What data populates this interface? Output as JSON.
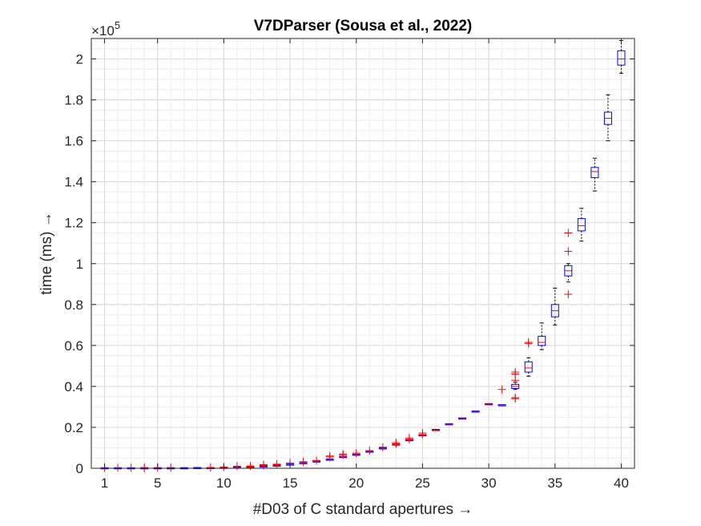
{
  "chart_data": {
    "type": "boxplot",
    "title": "V7DParser (Sousa et al., 2022)",
    "xlabel": "#D03 of C standard apertures →",
    "ylabel": "time (ms) →",
    "y_exponent_base": "×10",
    "y_exponent_power": "5",
    "xlim": [
      0,
      41
    ],
    "ylim": [
      0,
      2.1
    ],
    "y_scale_factor": 100000,
    "xticks": [
      1,
      5,
      10,
      15,
      20,
      25,
      30,
      35,
      40
    ],
    "yticks": [
      0,
      0.2,
      0.4,
      0.6,
      0.8,
      1,
      1.2,
      1.4,
      1.6,
      1.8,
      2
    ],
    "ytick_labels": [
      "0",
      "0.2",
      "0.4",
      "0.6",
      "0.8",
      "1",
      "1.2",
      "1.4",
      "1.6",
      "1.8",
      "2"
    ],
    "grid": true,
    "minor_grid": true,
    "colors": {
      "box": "#0000ff",
      "median": "#ff0000",
      "outlier": "#ff0000",
      "whisker": "#000000"
    },
    "boxes": [
      {
        "x": 1,
        "q1": 0,
        "median": 0,
        "q3": 0,
        "lo": 0,
        "hi": 0
      },
      {
        "x": 2,
        "q1": 0,
        "median": 0,
        "q3": 0,
        "lo": 0,
        "hi": 0
      },
      {
        "x": 3,
        "q1": 0,
        "median": 0,
        "q3": 0,
        "lo": 0,
        "hi": 0
      },
      {
        "x": 4,
        "q1": 0,
        "median": 0,
        "q3": 0,
        "lo": 0,
        "hi": 0
      },
      {
        "x": 5,
        "q1": 0,
        "median": 0,
        "q3": 0,
        "lo": 0,
        "hi": 0
      },
      {
        "x": 6,
        "q1": 0,
        "median": 0,
        "q3": 0,
        "lo": 0,
        "hi": 0
      },
      {
        "x": 7,
        "q1": 0,
        "median": 0,
        "q3": 0,
        "lo": 0,
        "hi": 0
      },
      {
        "x": 8,
        "q1": 0.001,
        "median": 0.001,
        "q3": 0.001,
        "lo": 0.001,
        "hi": 0.001
      },
      {
        "x": 9,
        "q1": 0.001,
        "median": 0.001,
        "q3": 0.001,
        "lo": 0.001,
        "hi": 0.001
      },
      {
        "x": 10,
        "q1": 0.002,
        "median": 0.002,
        "q3": 0.002,
        "lo": 0.002,
        "hi": 0.002
      },
      {
        "x": 11,
        "q1": 0.004,
        "median": 0.004,
        "q3": 0.004,
        "lo": 0.004,
        "hi": 0.004
      },
      {
        "x": 12,
        "q1": 0.006,
        "median": 0.006,
        "q3": 0.006,
        "lo": 0.006,
        "hi": 0.006
      },
      {
        "x": 13,
        "q1": 0.009,
        "median": 0.009,
        "q3": 0.009,
        "lo": 0.009,
        "hi": 0.009
      },
      {
        "x": 14,
        "q1": 0.013,
        "median": 0.013,
        "q3": 0.013,
        "lo": 0.013,
        "hi": 0.013
      },
      {
        "x": 15,
        "q1": 0.018,
        "median": 0.018,
        "q3": 0.018,
        "lo": 0.018,
        "hi": 0.018
      },
      {
        "x": 16,
        "q1": 0.025,
        "median": 0.025,
        "q3": 0.025,
        "lo": 0.025,
        "hi": 0.025
      },
      {
        "x": 17,
        "q1": 0.033,
        "median": 0.033,
        "q3": 0.033,
        "lo": 0.033,
        "hi": 0.033
      },
      {
        "x": 18,
        "q1": 0.042,
        "median": 0.042,
        "q3": 0.042,
        "lo": 0.042,
        "hi": 0.042
      },
      {
        "x": 19,
        "q1": 0.055,
        "median": 0.055,
        "q3": 0.055,
        "lo": 0.055,
        "hi": 0.055
      },
      {
        "x": 20,
        "q1": 0.066,
        "median": 0.066,
        "q3": 0.066,
        "lo": 0.066,
        "hi": 0.066
      },
      {
        "x": 21,
        "q1": 0.081,
        "median": 0.081,
        "q3": 0.081,
        "lo": 0.081,
        "hi": 0.081
      },
      {
        "x": 22,
        "q1": 0.097,
        "median": 0.097,
        "q3": 0.097,
        "lo": 0.097,
        "hi": 0.097
      },
      {
        "x": 23,
        "q1": 0.116,
        "median": 0.116,
        "q3": 0.116,
        "lo": 0.116,
        "hi": 0.116
      },
      {
        "x": 24,
        "q1": 0.136,
        "median": 0.137,
        "q3": 0.138,
        "lo": 0.136,
        "hi": 0.138
      },
      {
        "x": 25,
        "q1": 0.16,
        "median": 0.161,
        "q3": 0.162,
        "lo": 0.16,
        "hi": 0.162
      },
      {
        "x": 26,
        "q1": 0.186,
        "median": 0.187,
        "q3": 0.188,
        "lo": 0.186,
        "hi": 0.188
      },
      {
        "x": 27,
        "q1": 0.214,
        "median": 0.215,
        "q3": 0.216,
        "lo": 0.214,
        "hi": 0.216
      },
      {
        "x": 28,
        "q1": 0.242,
        "median": 0.243,
        "q3": 0.244,
        "lo": 0.242,
        "hi": 0.244
      },
      {
        "x": 29,
        "q1": 0.276,
        "median": 0.277,
        "q3": 0.278,
        "lo": 0.276,
        "hi": 0.278
      },
      {
        "x": 30,
        "q1": 0.312,
        "median": 0.313,
        "q3": 0.314,
        "lo": 0.312,
        "hi": 0.314
      },
      {
        "x": 31,
        "q1": 0.307,
        "median": 0.308,
        "q3": 0.309,
        "lo": 0.307,
        "hi": 0.309
      },
      {
        "x": 32,
        "q1": 0.39,
        "median": 0.4,
        "q3": 0.41,
        "lo": 0.385,
        "hi": 0.42
      },
      {
        "x": 33,
        "q1": 0.47,
        "median": 0.49,
        "q3": 0.52,
        "lo": 0.45,
        "hi": 0.54
      },
      {
        "x": 34,
        "q1": 0.6,
        "median": 0.615,
        "q3": 0.645,
        "lo": 0.58,
        "hi": 0.71
      },
      {
        "x": 35,
        "q1": 0.74,
        "median": 0.77,
        "q3": 0.8,
        "lo": 0.7,
        "hi": 0.88
      },
      {
        "x": 36,
        "q1": 0.94,
        "median": 0.965,
        "q3": 0.99,
        "lo": 0.91,
        "hi": 1.0
      },
      {
        "x": 37,
        "q1": 1.16,
        "median": 1.185,
        "q3": 1.22,
        "lo": 1.11,
        "hi": 1.27
      },
      {
        "x": 38,
        "q1": 1.42,
        "median": 1.45,
        "q3": 1.47,
        "lo": 1.355,
        "hi": 1.515
      },
      {
        "x": 39,
        "q1": 1.68,
        "median": 1.71,
        "q3": 1.74,
        "lo": 1.6,
        "hi": 1.825
      },
      {
        "x": 40,
        "q1": 1.97,
        "median": 2.0,
        "q3": 2.04,
        "lo": 1.93,
        "hi": 2.09
      }
    ],
    "outliers": [
      {
        "x": 1,
        "y": 0.002
      },
      {
        "x": 2,
        "y": 0.002
      },
      {
        "x": 3,
        "y": 0.002
      },
      {
        "x": 4,
        "y": 0.003
      },
      {
        "x": 4,
        "y": 0.001
      },
      {
        "x": 5,
        "y": 0.003
      },
      {
        "x": 6,
        "y": 0.003
      },
      {
        "x": 9,
        "y": 0.004
      },
      {
        "x": 10,
        "y": 0.006
      },
      {
        "x": 11,
        "y": 0.01
      },
      {
        "x": 12,
        "y": 0.011
      },
      {
        "x": 13,
        "y": 0.018
      },
      {
        "x": 13,
        "y": 0.014
      },
      {
        "x": 14,
        "y": 0.02
      },
      {
        "x": 15,
        "y": 0.026
      },
      {
        "x": 16,
        "y": 0.032
      },
      {
        "x": 17,
        "y": 0.038
      },
      {
        "x": 18,
        "y": 0.055
      },
      {
        "x": 18,
        "y": 0.06
      },
      {
        "x": 19,
        "y": 0.07
      },
      {
        "x": 19,
        "y": 0.065
      },
      {
        "x": 20,
        "y": 0.074
      },
      {
        "x": 21,
        "y": 0.086
      },
      {
        "x": 22,
        "y": 0.103
      },
      {
        "x": 23,
        "y": 0.125
      },
      {
        "x": 23,
        "y": 0.12
      },
      {
        "x": 24,
        "y": 0.148
      },
      {
        "x": 24,
        "y": 0.142
      },
      {
        "x": 25,
        "y": 0.172
      },
      {
        "x": 25,
        "y": 0.165
      },
      {
        "x": 31,
        "y": 0.385
      },
      {
        "x": 32,
        "y": 0.345
      },
      {
        "x": 32,
        "y": 0.34
      },
      {
        "x": 32,
        "y": 0.46
      },
      {
        "x": 32,
        "y": 0.47
      },
      {
        "x": 32,
        "y": 0.43
      },
      {
        "x": 33,
        "y": 0.61
      },
      {
        "x": 33,
        "y": 0.615
      },
      {
        "x": 36,
        "y": 1.15
      },
      {
        "x": 36,
        "y": 1.06
      },
      {
        "x": 36,
        "y": 0.85
      }
    ]
  }
}
